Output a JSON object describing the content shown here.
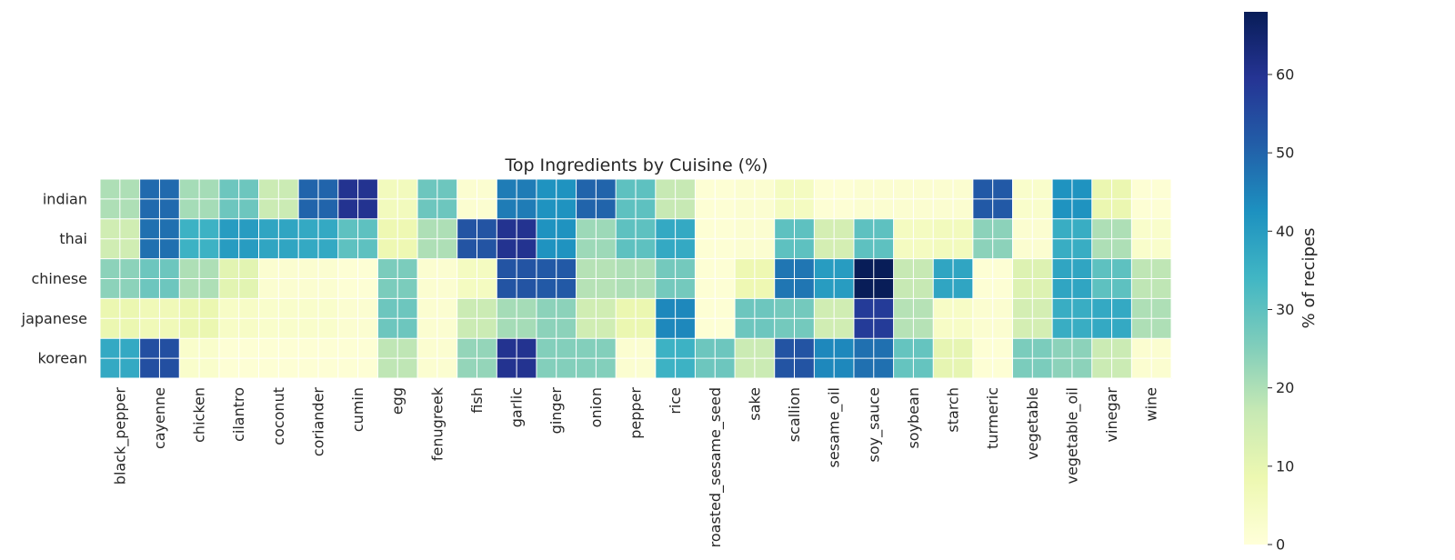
{
  "chart_data": {
    "type": "heatmap",
    "title": "Top Ingredients by Cuisine (%)",
    "xlabel": "",
    "ylabel": "",
    "rows": [
      "indian",
      "thai",
      "chinese",
      "japanese",
      "korean"
    ],
    "columns": [
      "black_pepper",
      "cayenne",
      "chicken",
      "cilantro",
      "coconut",
      "coriander",
      "cumin",
      "egg",
      "fenugreek",
      "fish",
      "garlic",
      "ginger",
      "onion",
      "pepper",
      "rice",
      "roasted_sesame_seed",
      "sake",
      "scallion",
      "sesame_oil",
      "soy_sauce",
      "soybean",
      "starch",
      "turmeric",
      "vegetable",
      "vegetable_oil",
      "vinegar",
      "wine"
    ],
    "values": [
      [
        20,
        49,
        21,
        28,
        16,
        50,
        60,
        6,
        28,
        2,
        46,
        42,
        50,
        30,
        17,
        1,
        2,
        5,
        1,
        2,
        2,
        2,
        52,
        3,
        42,
        9,
        1
      ],
      [
        15,
        48,
        35,
        40,
        38,
        37,
        30,
        8,
        20,
        53,
        60,
        42,
        22,
        30,
        37,
        1,
        2,
        30,
        14,
        30,
        5,
        6,
        24,
        2,
        36,
        20,
        3
      ],
      [
        24,
        28,
        20,
        11,
        2,
        2,
        1,
        26,
        2,
        5,
        53,
        52,
        19,
        20,
        27,
        1,
        8,
        47,
        40,
        68,
        17,
        38,
        1,
        12,
        38,
        30,
        18
      ],
      [
        9,
        7,
        9,
        4,
        3,
        3,
        2,
        28,
        2,
        16,
        21,
        24,
        15,
        9,
        44,
        1,
        28,
        27,
        15,
        58,
        19,
        4,
        2,
        14,
        36,
        37,
        20
      ],
      [
        37,
        54,
        3,
        1,
        1,
        1,
        1,
        18,
        2,
        23,
        60,
        25,
        25,
        2,
        35,
        28,
        16,
        53,
        44,
        48,
        29,
        10,
        1,
        26,
        24,
        16,
        2
      ]
    ],
    "colormap": "YlGnBu",
    "vmin": 0,
    "vmax": 68,
    "colorbar": {
      "label": "% of recipes",
      "ticks": [
        "0",
        "10",
        "20",
        "30",
        "40",
        "50",
        "60"
      ],
      "tick_values": [
        0,
        10,
        20,
        30,
        40,
        50,
        60
      ]
    },
    "grid": true,
    "grid_color": "#ffffff"
  }
}
